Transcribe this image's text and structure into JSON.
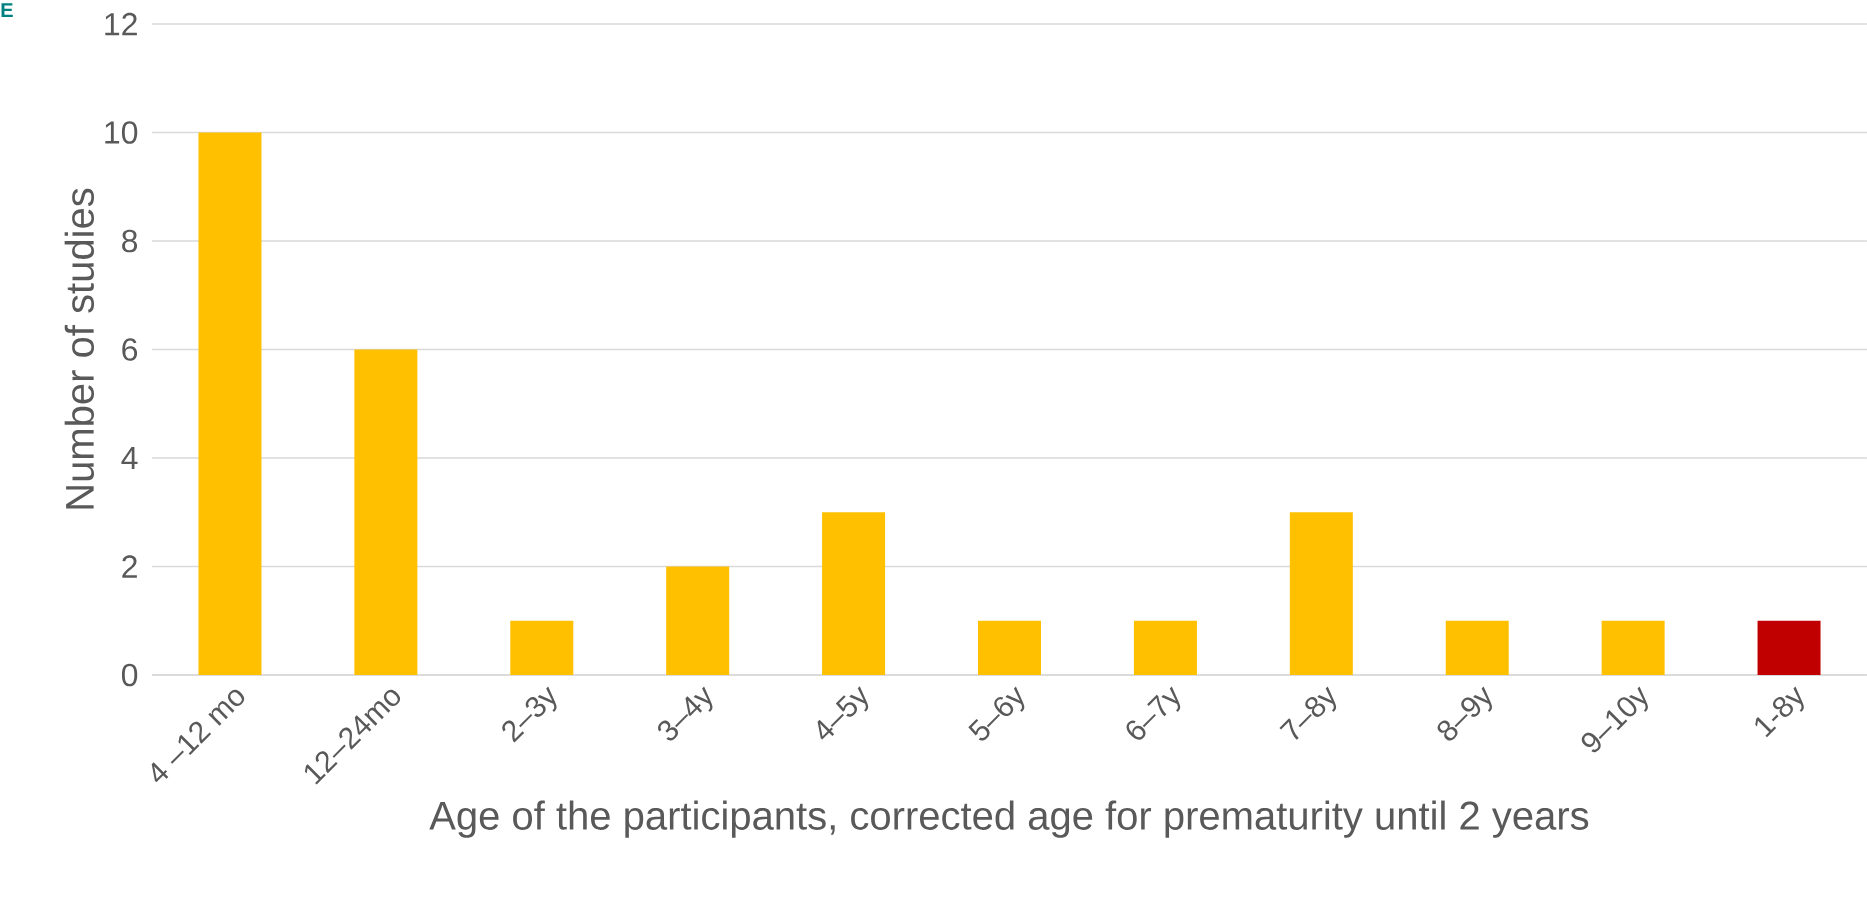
{
  "chart_data": {
    "type": "bar",
    "xlabel": "Age of the participants, corrected age for prematurity until 2 years",
    "ylabel": "Number of studies",
    "categories": [
      "4 –12 mo",
      "12–24mo",
      "2–3y",
      "3–4y",
      "4–5y",
      "5–6y",
      "6–7y",
      "7–8y",
      "8–9y",
      "9–10y",
      "1-8y"
    ],
    "values": [
      10,
      6,
      1,
      2,
      3,
      1,
      1,
      3,
      1,
      1,
      1
    ],
    "colors": [
      "#ffc000",
      "#ffc000",
      "#ffc000",
      "#ffc000",
      "#ffc000",
      "#ffc000",
      "#ffc000",
      "#ffc000",
      "#ffc000",
      "#ffc000",
      "#c00000"
    ],
    "ylim": [
      0,
      12
    ],
    "yticks": [
      0,
      2,
      4,
      6,
      8,
      10,
      12
    ],
    "grid": "y",
    "annotations": [
      "E"
    ]
  }
}
